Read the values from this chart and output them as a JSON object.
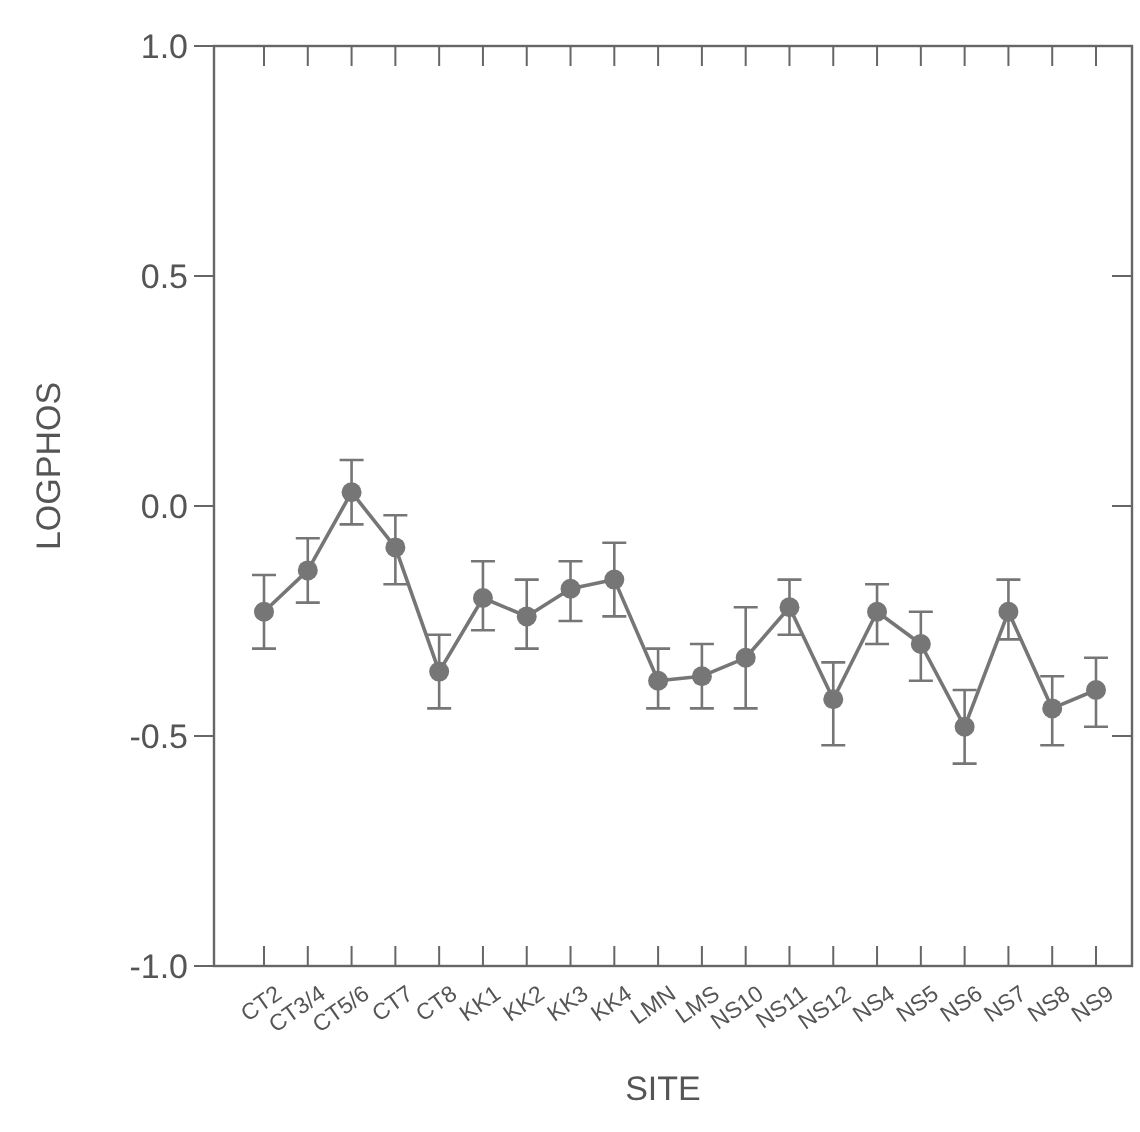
{
  "chart_data": {
    "type": "line",
    "xlabel": "SITE",
    "ylabel": "LOGPHOS",
    "categories": [
      "CT2",
      "CT3/4",
      "CT5/6",
      "CT7",
      "CT8",
      "KK1",
      "KK2",
      "KK3",
      "KK4",
      "LMN",
      "LMS",
      "NS10",
      "NS11",
      "NS12",
      "NS4",
      "NS5",
      "NS6",
      "NS7",
      "NS8",
      "NS9"
    ],
    "series": [
      {
        "color": "#767676",
        "values": [
          -0.23,
          -0.14,
          0.03,
          -0.09,
          -0.36,
          -0.2,
          -0.24,
          -0.18,
          -0.16,
          -0.38,
          -0.37,
          -0.33,
          -0.22,
          -0.42,
          -0.23,
          -0.3,
          -0.48,
          -0.23,
          -0.44,
          -0.4
        ],
        "errors": [
          [
            -0.31,
            -0.15
          ],
          [
            -0.21,
            -0.07
          ],
          [
            -0.04,
            0.1
          ],
          [
            -0.17,
            -0.02
          ],
          [
            -0.44,
            -0.28
          ],
          [
            -0.27,
            -0.12
          ],
          [
            -0.31,
            -0.16
          ],
          [
            -0.25,
            -0.12
          ],
          [
            -0.24,
            -0.08
          ],
          [
            -0.44,
            -0.31
          ],
          [
            -0.44,
            -0.3
          ],
          [
            -0.44,
            -0.22
          ],
          [
            -0.28,
            -0.16
          ],
          [
            -0.52,
            -0.34
          ],
          [
            -0.3,
            -0.17
          ],
          [
            -0.38,
            -0.23
          ],
          [
            -0.56,
            -0.4
          ],
          [
            -0.29,
            -0.16
          ],
          [
            -0.52,
            -0.37
          ],
          [
            -0.48,
            -0.33
          ]
        ]
      }
    ],
    "ylim": [
      -1.0,
      1.0
    ],
    "yticks": [
      {
        "value": -1,
        "label": "-1.0"
      },
      {
        "value": -0.5,
        "label": "-0.5"
      },
      {
        "value": 0,
        "label": "0.0"
      },
      {
        "value": 0.5,
        "label": "0.5"
      },
      {
        "value": 1,
        "label": "1.0"
      }
    ],
    "grid": false,
    "marker": "circle",
    "line_style": "solid"
  }
}
